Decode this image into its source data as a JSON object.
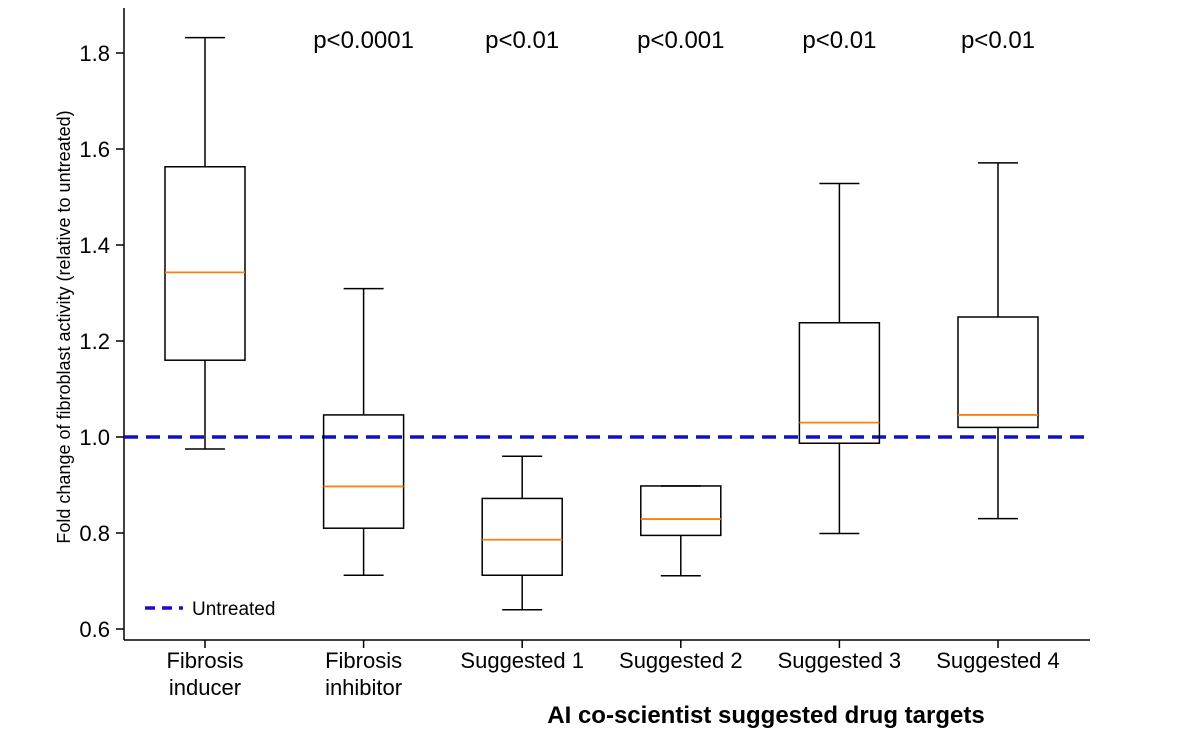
{
  "chart_data": {
    "type": "box",
    "ylabel": "Fold change of fibroblast activity (relative to untreated)",
    "xlabel": "",
    "ylim": [
      0.58,
      1.88
    ],
    "yticks": [
      0.6,
      0.8,
      1.0,
      1.2,
      1.4,
      1.6,
      1.8
    ],
    "ytick_labels": [
      "0.6",
      "0.8",
      "1.0",
      "1.2",
      "1.4",
      "1.6",
      "1.8"
    ],
    "categories": [
      [
        "Fibrosis",
        "inducer"
      ],
      [
        "Fibrosis",
        "inhibitor"
      ],
      [
        "Suggested 1"
      ],
      [
        "Suggested 2"
      ],
      [
        "Suggested 3"
      ],
      [
        "Suggested 4"
      ]
    ],
    "boxes": [
      {
        "whisker_low": 0.975,
        "q1": 1.16,
        "median": 1.343,
        "q3": 1.563,
        "whisker_high": 1.832,
        "pvalue": ""
      },
      {
        "whisker_low": 0.712,
        "q1": 0.81,
        "median": 0.897,
        "q3": 1.046,
        "whisker_high": 1.309,
        "pvalue": "p<0.0001"
      },
      {
        "whisker_low": 0.64,
        "q1": 0.712,
        "median": 0.786,
        "q3": 0.872,
        "whisker_high": 0.96,
        "pvalue": "p<0.01"
      },
      {
        "whisker_low": 0.711,
        "q1": 0.795,
        "median": 0.829,
        "q3": 0.898,
        "whisker_high": 0.898,
        "pvalue": "p<0.001"
      },
      {
        "whisker_low": 0.799,
        "q1": 0.987,
        "median": 1.03,
        "q3": 1.238,
        "whisker_high": 1.528,
        "pvalue": "p<0.01"
      },
      {
        "whisker_low": 0.83,
        "q1": 1.02,
        "median": 1.046,
        "q3": 1.25,
        "whisker_high": 1.571,
        "pvalue": "p<0.01"
      }
    ],
    "reference_line": {
      "y": 1.0,
      "label": "Untreated",
      "color": "#1010c8",
      "style": "dashed"
    },
    "legend": {
      "entries": [
        "Untreated"
      ],
      "location": "lower-left"
    },
    "group_caption": "AI co-scientist suggested drug targets",
    "colors": {
      "box": "#000000",
      "median": "#ff7f0e",
      "reference": "#1010c8"
    }
  }
}
